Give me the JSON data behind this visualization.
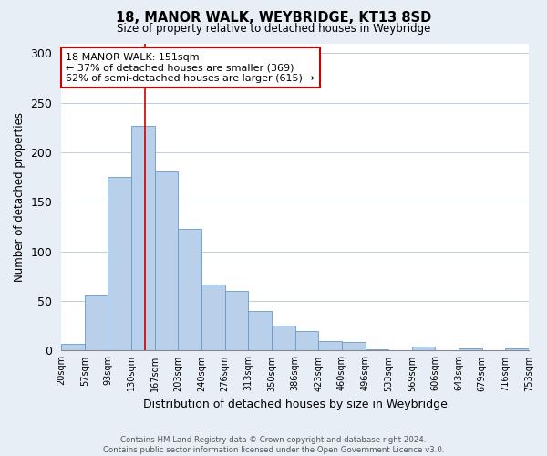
{
  "title": "18, MANOR WALK, WEYBRIDGE, KT13 8SD",
  "subtitle": "Size of property relative to detached houses in Weybridge",
  "xlabel": "Distribution of detached houses by size in Weybridge",
  "ylabel": "Number of detached properties",
  "bar_labels": [
    "20sqm",
    "57sqm",
    "93sqm",
    "130sqm",
    "167sqm",
    "203sqm",
    "240sqm",
    "276sqm",
    "313sqm",
    "350sqm",
    "386sqm",
    "423sqm",
    "460sqm",
    "496sqm",
    "533sqm",
    "569sqm",
    "606sqm",
    "643sqm",
    "679sqm",
    "716sqm",
    "753sqm"
  ],
  "bar_values": [
    7,
    56,
    175,
    227,
    181,
    123,
    67,
    60,
    40,
    25,
    20,
    10,
    9,
    1,
    0,
    4,
    0,
    2,
    0,
    2
  ],
  "bar_color": "#b8d0ea",
  "bar_edge_color": "#6699cc",
  "property_label": "18 MANOR WALK: 151sqm",
  "annotation_line1": "← 37% of detached houses are smaller (369)",
  "annotation_line2": "62% of semi-detached houses are larger (615) →",
  "vline_color": "#cc0000",
  "vline_x": 3.59,
  "ylim": [
    0,
    310
  ],
  "yticks": [
    0,
    50,
    100,
    150,
    200,
    250,
    300
  ],
  "footnote1": "Contains HM Land Registry data © Crown copyright and database right 2024.",
  "footnote2": "Contains public sector information licensed under the Open Government Licence v3.0.",
  "bg_color": "#e8eef5",
  "plot_bg_color": "#ffffff"
}
